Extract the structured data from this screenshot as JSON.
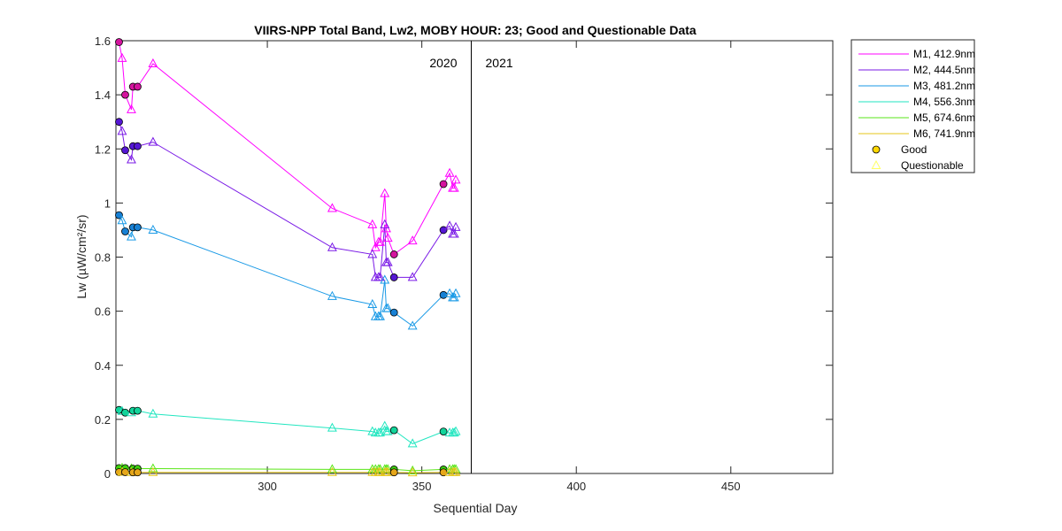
{
  "chart_data": {
    "type": "line",
    "title": "VIIRS-NPP Total Band,  Lw2, MOBY HOUR: 23;  Good and Questionable Data",
    "xlabel": "Sequential Day",
    "ylabel": "Lw (µW/cm²/sr)",
    "xlim": [
      251,
      483
    ],
    "ylim": [
      0,
      1.6
    ],
    "xticks": [
      300,
      350,
      400,
      450
    ],
    "yticks": [
      0,
      0.2,
      0.4,
      0.6,
      0.8,
      1,
      1.2,
      1.4,
      1.6
    ],
    "year_divider_x": 366,
    "year_labels": [
      "2020",
      "2021"
    ],
    "grid": false,
    "legend_position": "outside-right",
    "marker_legend": [
      {
        "label": "Good",
        "marker": "circle",
        "color": "#ffd700"
      },
      {
        "label": "Questionable",
        "marker": "triangle",
        "color": "#ffff66"
      }
    ],
    "x": [
      252,
      253,
      254,
      256,
      256.5,
      258,
      263,
      321,
      334,
      335,
      336,
      336.5,
      338,
      338.5,
      339,
      341,
      347,
      357,
      359,
      360,
      360.5,
      361
    ],
    "flags": [
      "G",
      "Q",
      "G",
      "Q",
      "G",
      "G",
      "Q",
      "Q",
      "Q",
      "Q",
      "Q",
      "Q",
      "Q",
      "Q",
      "Q",
      "G",
      "Q",
      "G",
      "Q",
      "Q",
      "Q",
      "Q"
    ],
    "series": [
      {
        "name": "M1, 412.9nm",
        "color": "#ff00ff",
        "fill": "#d4149e",
        "values": [
          1.595,
          1.535,
          1.4,
          1.345,
          1.43,
          1.43,
          1.515,
          0.98,
          0.92,
          0.835,
          0.855,
          0.855,
          1.035,
          0.905,
          0.87,
          0.81,
          0.86,
          1.07,
          1.11,
          1.055,
          1.055,
          1.085
        ]
      },
      {
        "name": "M2, 444.5nm",
        "color": "#7a1ae6",
        "fill": "#5517d4",
        "values": [
          1.3,
          1.265,
          1.195,
          1.16,
          1.21,
          1.21,
          1.225,
          0.835,
          0.81,
          0.725,
          0.725,
          0.725,
          0.92,
          0.78,
          0.78,
          0.725,
          0.725,
          0.9,
          0.915,
          0.885,
          0.885,
          0.91
        ]
      },
      {
        "name": "M3, 481.2nm",
        "color": "#1a9ae6",
        "fill": "#1780d4",
        "values": [
          0.955,
          0.935,
          0.895,
          0.875,
          0.91,
          0.91,
          0.9,
          0.655,
          0.625,
          0.58,
          0.58,
          0.58,
          0.715,
          0.61,
          0.61,
          0.595,
          0.545,
          0.66,
          0.665,
          0.65,
          0.65,
          0.665
        ]
      },
      {
        "name": "M4, 556.3nm",
        "color": "#22e6c0",
        "fill": "#11d49a",
        "values": [
          0.235,
          0.23,
          0.225,
          0.225,
          0.232,
          0.232,
          0.22,
          0.168,
          0.155,
          0.15,
          0.15,
          0.15,
          0.175,
          0.155,
          0.155,
          0.16,
          0.11,
          0.155,
          0.15,
          0.15,
          0.15,
          0.155
        ]
      },
      {
        "name": "M5, 674.6nm",
        "color": "#5ae619",
        "fill": "#3ecf10",
        "values": [
          0.02,
          0.02,
          0.02,
          0.018,
          0.018,
          0.018,
          0.018,
          0.015,
          0.015,
          0.015,
          0.015,
          0.015,
          0.015,
          0.015,
          0.015,
          0.015,
          0.01,
          0.015,
          0.015,
          0.015,
          0.015,
          0.015
        ]
      },
      {
        "name": "M6, 741.9nm",
        "color": "#e6c619",
        "fill": "#e6a619",
        "values": [
          0.005,
          0.005,
          0.005,
          0.004,
          0.004,
          0.004,
          0.004,
          0.004,
          0.004,
          0.004,
          0.004,
          0.004,
          0.004,
          0.004,
          0.004,
          0.004,
          0.003,
          0.004,
          0.004,
          0.004,
          0.004,
          0.004
        ]
      }
    ]
  }
}
